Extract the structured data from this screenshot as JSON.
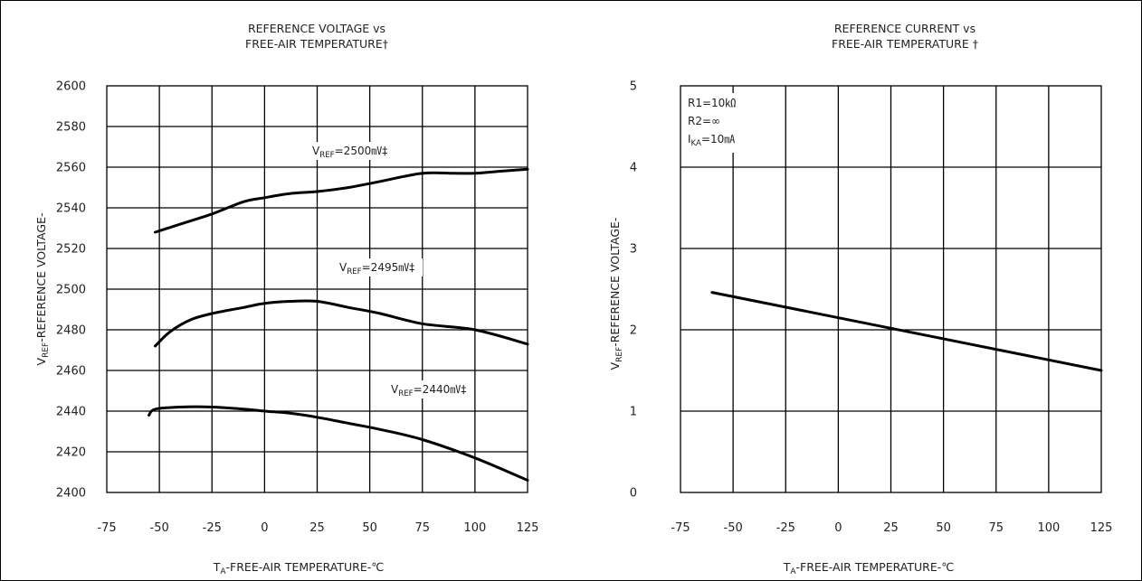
{
  "chart_data": [
    {
      "type": "line",
      "title_lines": [
        "REFERENCE VOLTAGE vs",
        "FREE-AIR TEMPERATURE†"
      ],
      "ylabel": {
        "main": "V",
        "sub": "REF",
        "rest": "-REFERENCE VOLTAGE-"
      },
      "xlabel": {
        "main": "T",
        "sub": "A",
        "rest": "-FREE-AIR TEMPERATURE-℃"
      },
      "x_ticks": [
        "-75",
        "-50",
        "-25",
        "0",
        "25",
        "50",
        "75",
        "100",
        "125"
      ],
      "y_ticks": [
        "2400",
        "2420",
        "2440",
        "2460",
        "2480",
        "2500",
        "2520",
        "2540",
        "2560",
        "2580",
        "2600"
      ],
      "xlim": [
        -75,
        125
      ],
      "ylim": [
        2400,
        2600
      ],
      "series": [
        {
          "label": {
            "main": "V",
            "sub": "REF",
            "rest": "=2500㎷‡"
          },
          "x": [
            -52,
            -40,
            -25,
            -10,
            0,
            12,
            25,
            40,
            55,
            75,
            90,
            100,
            112,
            125
          ],
          "y": [
            2528,
            2532,
            2537,
            2543,
            2545,
            2547,
            2548,
            2550,
            2553,
            2557,
            2557,
            2557,
            2558,
            2559
          ]
        },
        {
          "label": {
            "main": "V",
            "sub": "REF",
            "rest": "=2495㎷‡"
          },
          "x": [
            -52,
            -45,
            -35,
            -25,
            -10,
            0,
            12,
            25,
            40,
            55,
            75,
            100,
            125
          ],
          "y": [
            2472,
            2479,
            2485,
            2488,
            2491,
            2493,
            2494,
            2494,
            2491,
            2488,
            2483,
            2480,
            2473
          ]
        },
        {
          "label": {
            "main": "V",
            "sub": "REF",
            "rest": "=2440㎷‡"
          },
          "x": [
            -55,
            -52,
            -40,
            -25,
            -10,
            0,
            12,
            25,
            40,
            55,
            75,
            100,
            125
          ],
          "y": [
            2438,
            2441,
            2442,
            2442,
            2441,
            2440,
            2439,
            2437,
            2434,
            2431,
            2426,
            2417,
            2406
          ]
        }
      ]
    },
    {
      "type": "line",
      "title_lines": [
        "REFERENCE CURRENT vs",
        "FREE-AIR TEMPERATURE †"
      ],
      "ylabel": {
        "main": "V",
        "sub": "REF",
        "rest": "-REFERENCE VOLTAGE-"
      },
      "xlabel": {
        "main": "T",
        "sub": "A",
        "rest": "-FREE-AIR TEMPERATURE-℃"
      },
      "x_ticks": [
        "-75",
        "-50",
        "-25",
        "0",
        "25",
        "50",
        "75",
        "100",
        "125"
      ],
      "y_ticks": [
        "0",
        "1",
        "2",
        "3",
        "4",
        "5"
      ],
      "xlim": [
        -75,
        125
      ],
      "ylim": [
        0,
        5
      ],
      "annotations": [
        {
          "main": "R1=10㏀",
          "sub": "",
          "rest": ""
        },
        {
          "main": "R2=∞",
          "sub": "",
          "rest": ""
        },
        {
          "main": "I",
          "sub": "KA",
          "rest": "=10㎃"
        }
      ],
      "series": [
        {
          "x": [
            -60,
            125
          ],
          "y": [
            2.46,
            1.5
          ]
        }
      ]
    }
  ]
}
